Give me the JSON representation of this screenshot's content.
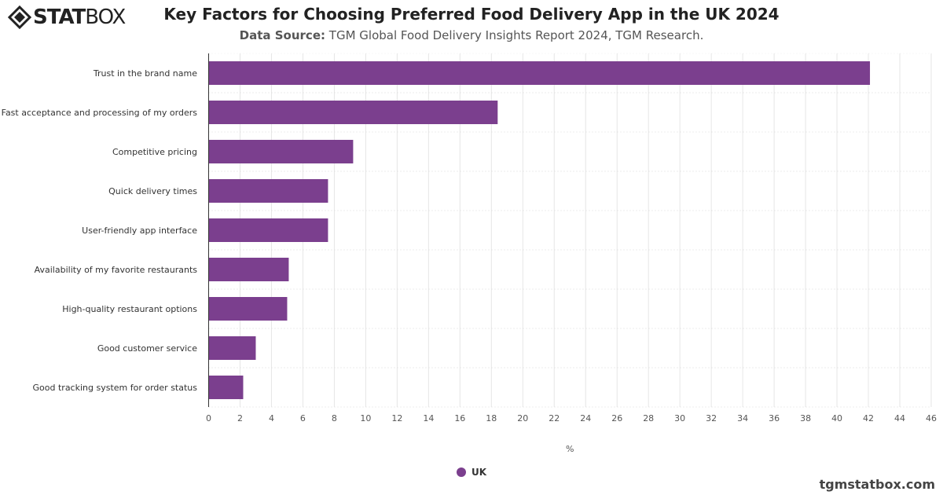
{
  "brand": {
    "logo_text": "STATBOX",
    "footer": "tgmstatbox.com"
  },
  "chart_data": {
    "type": "bar",
    "orientation": "horizontal",
    "title": "Key Factors for Choosing Preferred Food Delivery App in the UK 2024",
    "subtitle_label": "Data Source:",
    "subtitle": "TGM Global Food Delivery Insights Report 2024, TGM Research.",
    "categories": [
      "Trust in the brand name",
      "Fast acceptance and processing of my orders",
      "Competitive pricing",
      "Quick delivery times",
      "User-friendly app interface",
      "Availability of my favorite restaurants",
      "High-quality restaurant options",
      "Good customer service",
      "Good tracking system for order status"
    ],
    "series": [
      {
        "name": "UK",
        "color": "#7b3f8e",
        "values": [
          42.1,
          18.4,
          9.2,
          7.6,
          7.6,
          5.1,
          5.0,
          3.0,
          2.2
        ]
      }
    ],
    "xlabel": "%",
    "xlim": [
      0,
      46
    ],
    "xticks": [
      0,
      2,
      4,
      6,
      8,
      10,
      12,
      14,
      16,
      18,
      20,
      22,
      24,
      26,
      28,
      30,
      32,
      34,
      36,
      38,
      40,
      42,
      44,
      46
    ],
    "grid": true,
    "legend_position": "bottom"
  }
}
